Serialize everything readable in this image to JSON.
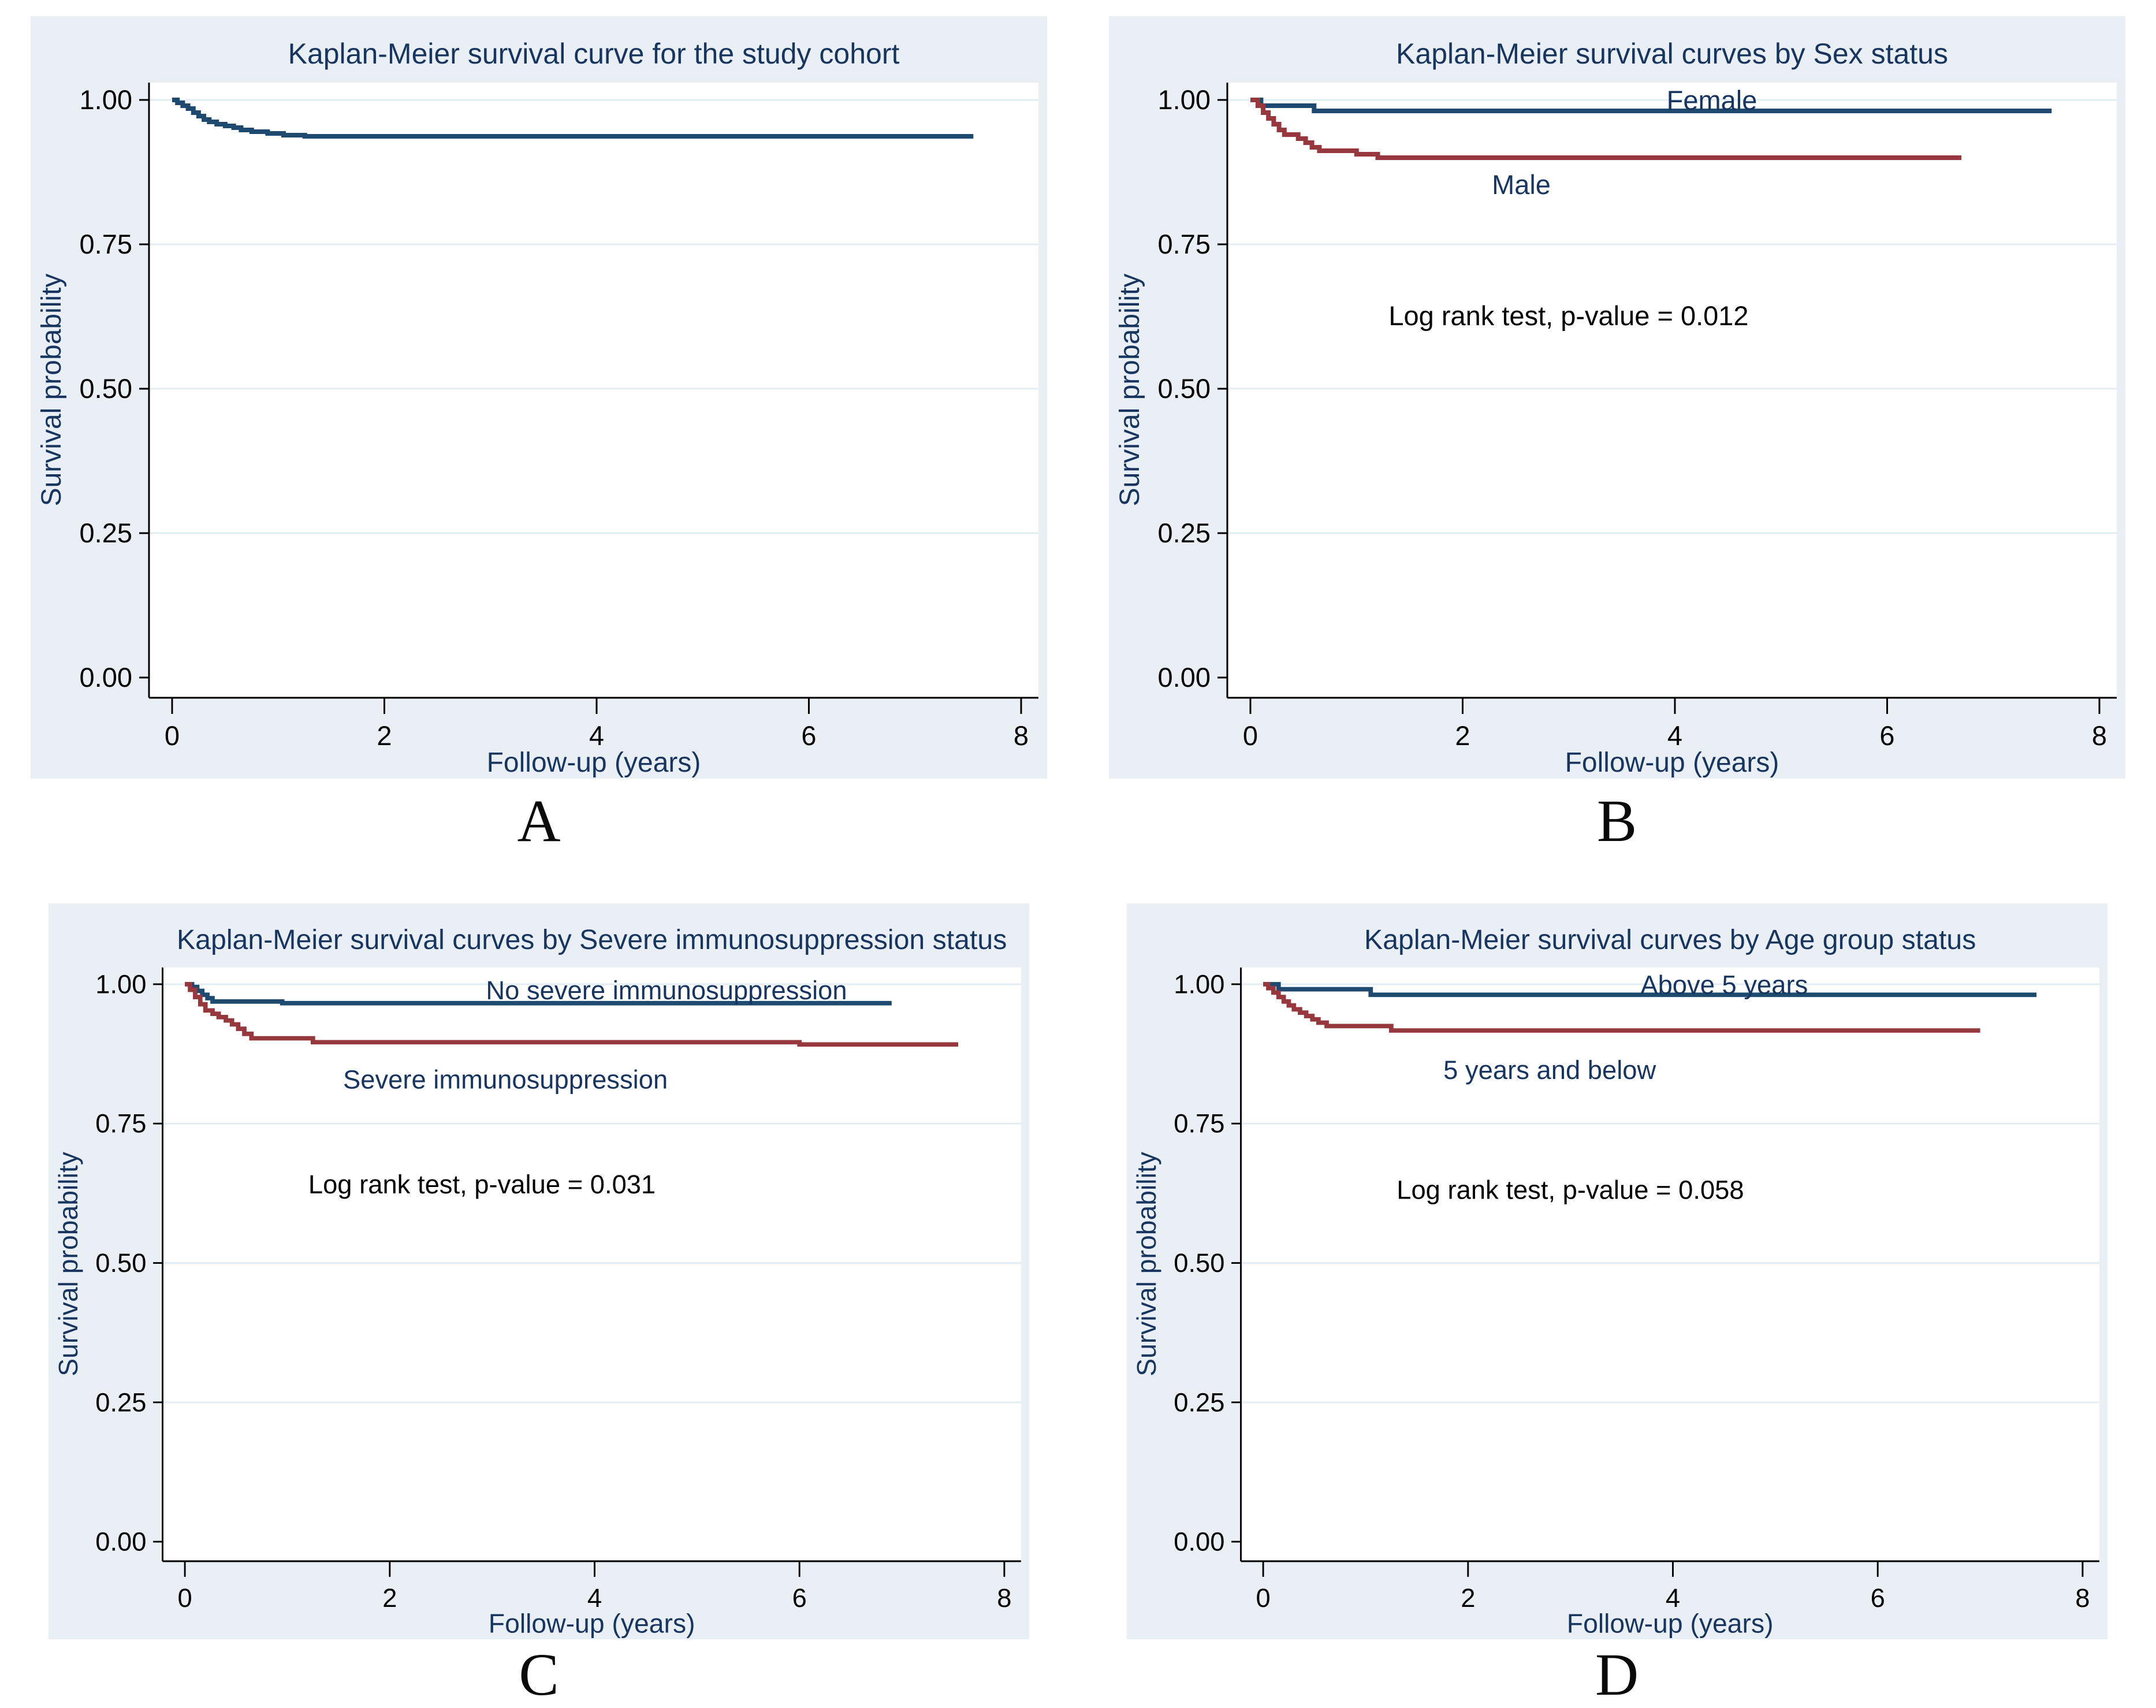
{
  "style": {
    "panel_bg": "#e9eff4",
    "plot_bg": "#ffffff",
    "grid_color": "#e2ecf3",
    "axis_color": "#000000",
    "title_color": "#17355f",
    "navy": "#1d4a6e",
    "maroon": "#96383e",
    "text_color": "#000000"
  },
  "chart_data": [
    {
      "type": "line",
      "subtype": "kaplan-meier-step",
      "panel_letter": "A",
      "title": "Kaplan-Meier survival curve for the study cohort",
      "xlabel": "Follow-up (years)",
      "ylabel": "Survival probability",
      "xlim": [
        0,
        8
      ],
      "ylim": [
        0.0,
        1.0
      ],
      "xticks": [
        "0",
        "2",
        "4",
        "6",
        "8"
      ],
      "yticks": [
        "0.00",
        "0.25",
        "0.50",
        "0.75",
        "1.00"
      ],
      "grid": true,
      "legend_position": "none",
      "annotation": "",
      "series": [
        {
          "label": "",
          "color": "navy",
          "end_x": 7.55,
          "points": [
            [
              0,
              1.0
            ],
            [
              0.05,
              0.995
            ],
            [
              0.1,
              0.99
            ],
            [
              0.15,
              0.985
            ],
            [
              0.2,
              0.978
            ],
            [
              0.25,
              0.972
            ],
            [
              0.3,
              0.966
            ],
            [
              0.35,
              0.962
            ],
            [
              0.42,
              0.958
            ],
            [
              0.5,
              0.955
            ],
            [
              0.58,
              0.952
            ],
            [
              0.65,
              0.948
            ],
            [
              0.75,
              0.945
            ],
            [
              0.9,
              0.942
            ],
            [
              1.05,
              0.939
            ],
            [
              1.25,
              0.937
            ]
          ]
        }
      ]
    },
    {
      "type": "line",
      "subtype": "kaplan-meier-step",
      "panel_letter": "B",
      "title": "Kaplan-Meier survival curves by Sex status",
      "xlabel": "Follow-up (years)",
      "ylabel": "Survival probability",
      "xlim": [
        0,
        8
      ],
      "ylim": [
        0.0,
        1.0
      ],
      "xticks": [
        "0",
        "2",
        "4",
        "6",
        "8"
      ],
      "yticks": [
        "0.00",
        "0.25",
        "0.50",
        "0.75",
        "1.00"
      ],
      "grid": true,
      "legend_position": "inline-labels",
      "annotation": "Log rank test, p-value = 0.012",
      "series": [
        {
          "label": "Female",
          "color": "navy",
          "end_x": 7.55,
          "points": [
            [
              0,
              1.0
            ],
            [
              0.1,
              0.99
            ],
            [
              0.6,
              0.981
            ]
          ]
        },
        {
          "label": "Male",
          "color": "maroon",
          "end_x": 6.7,
          "points": [
            [
              0,
              1.0
            ],
            [
              0.07,
              0.99
            ],
            [
              0.12,
              0.978
            ],
            [
              0.17,
              0.968
            ],
            [
              0.22,
              0.958
            ],
            [
              0.27,
              0.948
            ],
            [
              0.32,
              0.94
            ],
            [
              0.45,
              0.933
            ],
            [
              0.52,
              0.926
            ],
            [
              0.58,
              0.918
            ],
            [
              0.65,
              0.912
            ],
            [
              1.0,
              0.906
            ],
            [
              1.2,
              0.9
            ]
          ]
        }
      ]
    },
    {
      "type": "line",
      "subtype": "kaplan-meier-step",
      "panel_letter": "C",
      "title": "Kaplan-Meier survival curves by Severe immunosuppression status",
      "xlabel": "Follow-up (years)",
      "ylabel": "Survival probability",
      "xlim": [
        0,
        8
      ],
      "ylim": [
        0.0,
        1.0
      ],
      "xticks": [
        "0",
        "2",
        "4",
        "6",
        "8"
      ],
      "yticks": [
        "0.00",
        "0.25",
        "0.50",
        "0.75",
        "1.00"
      ],
      "grid": true,
      "legend_position": "inline-labels",
      "annotation": "Log rank test, p-value = 0.031",
      "series": [
        {
          "label": "No severe immunosuppression",
          "color": "navy",
          "end_x": 6.9,
          "points": [
            [
              0,
              1.0
            ],
            [
              0.07,
              0.995
            ],
            [
              0.12,
              0.988
            ],
            [
              0.17,
              0.981
            ],
            [
              0.22,
              0.975
            ],
            [
              0.27,
              0.969
            ],
            [
              0.95,
              0.966
            ]
          ]
        },
        {
          "label": "Severe immunosuppression",
          "color": "maroon",
          "end_x": 7.55,
          "points": [
            [
              0,
              1.0
            ],
            [
              0.05,
              0.99
            ],
            [
              0.1,
              0.977
            ],
            [
              0.15,
              0.964
            ],
            [
              0.2,
              0.953
            ],
            [
              0.27,
              0.947
            ],
            [
              0.33,
              0.941
            ],
            [
              0.4,
              0.935
            ],
            [
              0.46,
              0.928
            ],
            [
              0.52,
              0.92
            ],
            [
              0.58,
              0.911
            ],
            [
              0.65,
              0.903
            ],
            [
              1.25,
              0.896
            ],
            [
              6.0,
              0.892
            ]
          ]
        }
      ]
    },
    {
      "type": "line",
      "subtype": "kaplan-meier-step",
      "panel_letter": "D",
      "title": "Kaplan-Meier survival curves by Age group status",
      "xlabel": "Follow-up (years)",
      "ylabel": "Survival probability",
      "xlim": [
        0,
        8
      ],
      "ylim": [
        0.0,
        1.0
      ],
      "xticks": [
        "0",
        "2",
        "4",
        "6",
        "8"
      ],
      "yticks": [
        "0.00",
        "0.25",
        "0.50",
        "0.75",
        "1.00"
      ],
      "grid": true,
      "legend_position": "inline-labels",
      "annotation": "Log rank test, p-value = 0.058",
      "series": [
        {
          "label": "Above 5 years",
          "color": "navy",
          "end_x": 7.55,
          "points": [
            [
              0,
              1.0
            ],
            [
              0.15,
              0.991
            ],
            [
              1.05,
              0.981
            ]
          ]
        },
        {
          "label": "5 years and below",
          "color": "maroon",
          "end_x": 7.0,
          "points": [
            [
              0,
              1.0
            ],
            [
              0.05,
              0.993
            ],
            [
              0.1,
              0.985
            ],
            [
              0.15,
              0.977
            ],
            [
              0.2,
              0.969
            ],
            [
              0.25,
              0.962
            ],
            [
              0.3,
              0.955
            ],
            [
              0.36,
              0.949
            ],
            [
              0.42,
              0.943
            ],
            [
              0.48,
              0.937
            ],
            [
              0.54,
              0.931
            ],
            [
              0.62,
              0.925
            ],
            [
              1.25,
              0.917
            ]
          ]
        }
      ]
    }
  ]
}
